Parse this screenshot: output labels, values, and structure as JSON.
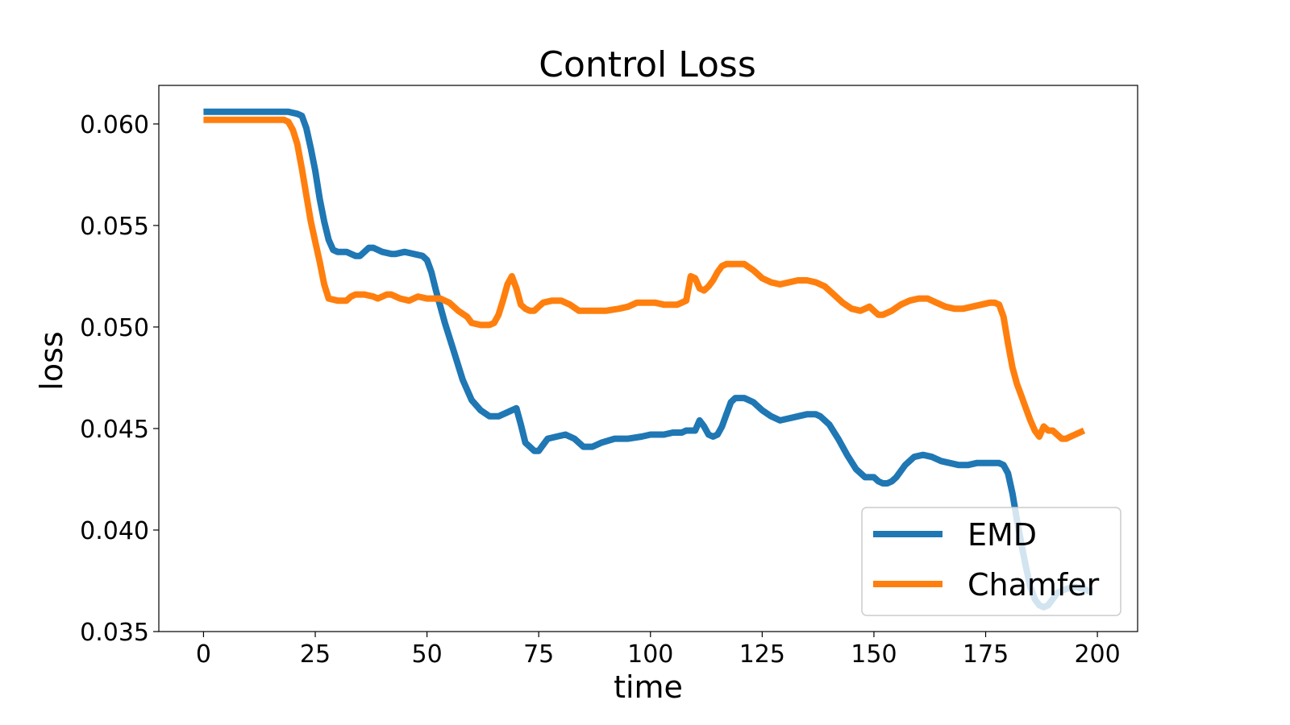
{
  "chart_data": {
    "type": "line",
    "title": "Control Loss",
    "xlabel": "time",
    "ylabel": "loss",
    "xlim": [
      -10,
      209
    ],
    "ylim": [
      0.035,
      0.0619
    ],
    "xticks": [
      0,
      25,
      50,
      75,
      100,
      125,
      150,
      175,
      200
    ],
    "xtick_labels": [
      "0",
      "25",
      "50",
      "75",
      "100",
      "125",
      "150",
      "175",
      "200"
    ],
    "yticks": [
      0.035,
      0.04,
      0.045,
      0.05,
      0.055,
      0.06
    ],
    "ytick_labels": [
      "0.035",
      "0.040",
      "0.045",
      "0.050",
      "0.055",
      "0.060"
    ],
    "grid": false,
    "legend_position": "lower-right",
    "series": [
      {
        "name": "EMD",
        "color": "#1f77b4",
        "points": [
          [
            0,
            0.0606
          ],
          [
            5,
            0.0606
          ],
          [
            10,
            0.0606
          ],
          [
            15,
            0.0606
          ],
          [
            19,
            0.0606
          ],
          [
            21,
            0.0605
          ],
          [
            22,
            0.0604
          ],
          [
            23,
            0.0598
          ],
          [
            24,
            0.0588
          ],
          [
            25,
            0.0577
          ],
          [
            26,
            0.0563
          ],
          [
            27,
            0.0552
          ],
          [
            28,
            0.0543
          ],
          [
            29,
            0.0538
          ],
          [
            30,
            0.0537
          ],
          [
            32,
            0.0537
          ],
          [
            34,
            0.0535
          ],
          [
            35,
            0.0535
          ],
          [
            37,
            0.0539
          ],
          [
            38,
            0.0539
          ],
          [
            40,
            0.0537
          ],
          [
            42,
            0.0536
          ],
          [
            43,
            0.0536
          ],
          [
            45,
            0.0537
          ],
          [
            47,
            0.0536
          ],
          [
            49,
            0.0535
          ],
          [
            50,
            0.0533
          ],
          [
            51,
            0.0527
          ],
          [
            52,
            0.0518
          ],
          [
            54,
            0.0502
          ],
          [
            56,
            0.0488
          ],
          [
            58,
            0.0474
          ],
          [
            60,
            0.0464
          ],
          [
            62,
            0.0459
          ],
          [
            64,
            0.0456
          ],
          [
            66,
            0.0456
          ],
          [
            68,
            0.0458
          ],
          [
            69,
            0.0459
          ],
          [
            70,
            0.046
          ],
          [
            71,
            0.0452
          ],
          [
            72,
            0.0443
          ],
          [
            73,
            0.0441
          ],
          [
            74,
            0.0439
          ],
          [
            75,
            0.0439
          ],
          [
            76,
            0.0442
          ],
          [
            77,
            0.0445
          ],
          [
            79,
            0.0446
          ],
          [
            81,
            0.0447
          ],
          [
            83,
            0.0445
          ],
          [
            85,
            0.0441
          ],
          [
            87,
            0.0441
          ],
          [
            89,
            0.0443
          ],
          [
            92,
            0.0445
          ],
          [
            95,
            0.0445
          ],
          [
            98,
            0.0446
          ],
          [
            100,
            0.0447
          ],
          [
            103,
            0.0447
          ],
          [
            105,
            0.0448
          ],
          [
            107,
            0.0448
          ],
          [
            108,
            0.0449
          ],
          [
            110,
            0.0449
          ],
          [
            111,
            0.0454
          ],
          [
            112,
            0.0451
          ],
          [
            113,
            0.0447
          ],
          [
            114,
            0.0446
          ],
          [
            115,
            0.0447
          ],
          [
            116,
            0.0451
          ],
          [
            117,
            0.0457
          ],
          [
            118,
            0.0463
          ],
          [
            119,
            0.0465
          ],
          [
            121,
            0.0465
          ],
          [
            123,
            0.0463
          ],
          [
            125,
            0.0459
          ],
          [
            127,
            0.0456
          ],
          [
            129,
            0.0454
          ],
          [
            131,
            0.0455
          ],
          [
            133,
            0.0456
          ],
          [
            135,
            0.0457
          ],
          [
            137,
            0.0457
          ],
          [
            138,
            0.0456
          ],
          [
            140,
            0.0452
          ],
          [
            142,
            0.0445
          ],
          [
            144,
            0.0437
          ],
          [
            146,
            0.043
          ],
          [
            148,
            0.0426
          ],
          [
            150,
            0.0426
          ],
          [
            151,
            0.0424
          ],
          [
            152,
            0.0423
          ],
          [
            153,
            0.0423
          ],
          [
            154,
            0.0424
          ],
          [
            155,
            0.0426
          ],
          [
            157,
            0.0432
          ],
          [
            159,
            0.0436
          ],
          [
            161,
            0.0437
          ],
          [
            163,
            0.0436
          ],
          [
            165,
            0.0434
          ],
          [
            167,
            0.0433
          ],
          [
            169,
            0.0432
          ],
          [
            171,
            0.0432
          ],
          [
            173,
            0.0433
          ],
          [
            175,
            0.0433
          ],
          [
            177,
            0.0433
          ],
          [
            178,
            0.0433
          ],
          [
            179,
            0.0432
          ],
          [
            180,
            0.0428
          ],
          [
            181,
            0.0418
          ],
          [
            182,
            0.0405
          ],
          [
            183,
            0.0393
          ],
          [
            184,
            0.0382
          ],
          [
            185,
            0.0372
          ],
          [
            186,
            0.0366
          ],
          [
            187,
            0.0363
          ],
          [
            188,
            0.0362
          ],
          [
            189,
            0.0363
          ],
          [
            190,
            0.0366
          ],
          [
            191,
            0.0369
          ],
          [
            192,
            0.037
          ],
          [
            193,
            0.0371
          ],
          [
            195,
            0.0372
          ],
          [
            197,
            0.0371
          ],
          [
            198,
            0.037
          ],
          [
            199,
            0.037
          ]
        ]
      },
      {
        "name": "Chamfer",
        "color": "#ff7f0e",
        "points": [
          [
            0,
            0.0602
          ],
          [
            5,
            0.0602
          ],
          [
            10,
            0.0602
          ],
          [
            15,
            0.0602
          ],
          [
            18,
            0.0602
          ],
          [
            19,
            0.0601
          ],
          [
            20,
            0.0597
          ],
          [
            21,
            0.059
          ],
          [
            22,
            0.0578
          ],
          [
            23,
            0.0565
          ],
          [
            24,
            0.0552
          ],
          [
            25,
            0.0542
          ],
          [
            26,
            0.0532
          ],
          [
            27,
            0.0521
          ],
          [
            28,
            0.0514
          ],
          [
            30,
            0.0513
          ],
          [
            32,
            0.0513
          ],
          [
            33,
            0.0515
          ],
          [
            34,
            0.0516
          ],
          [
            36,
            0.0516
          ],
          [
            38,
            0.0515
          ],
          [
            39,
            0.0514
          ],
          [
            40,
            0.0515
          ],
          [
            41,
            0.0516
          ],
          [
            42,
            0.0516
          ],
          [
            44,
            0.0514
          ],
          [
            46,
            0.0513
          ],
          [
            47,
            0.0514
          ],
          [
            48,
            0.0515
          ],
          [
            50,
            0.0514
          ],
          [
            52,
            0.0514
          ],
          [
            53,
            0.0514
          ],
          [
            55,
            0.0512
          ],
          [
            57,
            0.0508
          ],
          [
            59,
            0.0505
          ],
          [
            60,
            0.0502
          ],
          [
            62,
            0.0501
          ],
          [
            64,
            0.0501
          ],
          [
            65,
            0.0502
          ],
          [
            66,
            0.0506
          ],
          [
            67,
            0.0513
          ],
          [
            68,
            0.0521
          ],
          [
            69,
            0.0525
          ],
          [
            70,
            0.0519
          ],
          [
            71,
            0.0511
          ],
          [
            72,
            0.0509
          ],
          [
            73,
            0.0508
          ],
          [
            74,
            0.0508
          ],
          [
            75,
            0.051
          ],
          [
            76,
            0.0512
          ],
          [
            78,
            0.0513
          ],
          [
            80,
            0.0513
          ],
          [
            82,
            0.0511
          ],
          [
            84,
            0.0508
          ],
          [
            86,
            0.0508
          ],
          [
            88,
            0.0508
          ],
          [
            90,
            0.0508
          ],
          [
            93,
            0.0509
          ],
          [
            95,
            0.051
          ],
          [
            97,
            0.0512
          ],
          [
            99,
            0.0512
          ],
          [
            101,
            0.0512
          ],
          [
            103,
            0.0511
          ],
          [
            105,
            0.0511
          ],
          [
            106,
            0.0511
          ],
          [
            107,
            0.0512
          ],
          [
            108,
            0.0513
          ],
          [
            109,
            0.0525
          ],
          [
            110,
            0.0524
          ],
          [
            111,
            0.0519
          ],
          [
            112,
            0.0518
          ],
          [
            113,
            0.052
          ],
          [
            114,
            0.0523
          ],
          [
            115,
            0.0527
          ],
          [
            116,
            0.053
          ],
          [
            117,
            0.0531
          ],
          [
            119,
            0.0531
          ],
          [
            121,
            0.0531
          ],
          [
            123,
            0.0528
          ],
          [
            125,
            0.0524
          ],
          [
            127,
            0.0522
          ],
          [
            129,
            0.0521
          ],
          [
            131,
            0.0522
          ],
          [
            133,
            0.0523
          ],
          [
            135,
            0.0523
          ],
          [
            137,
            0.0522
          ],
          [
            139,
            0.052
          ],
          [
            141,
            0.0516
          ],
          [
            143,
            0.0512
          ],
          [
            145,
            0.0509
          ],
          [
            147,
            0.0508
          ],
          [
            148,
            0.0509
          ],
          [
            149,
            0.051
          ],
          [
            150,
            0.0508
          ],
          [
            151,
            0.0506
          ],
          [
            152,
            0.0506
          ],
          [
            154,
            0.0508
          ],
          [
            156,
            0.0511
          ],
          [
            158,
            0.0513
          ],
          [
            160,
            0.0514
          ],
          [
            162,
            0.0514
          ],
          [
            164,
            0.0512
          ],
          [
            166,
            0.051
          ],
          [
            168,
            0.0509
          ],
          [
            170,
            0.0509
          ],
          [
            172,
            0.051
          ],
          [
            174,
            0.0511
          ],
          [
            176,
            0.0512
          ],
          [
            177,
            0.0512
          ],
          [
            178,
            0.0511
          ],
          [
            179,
            0.0505
          ],
          [
            180,
            0.0492
          ],
          [
            181,
            0.048
          ],
          [
            182,
            0.0472
          ],
          [
            183,
            0.0466
          ],
          [
            184,
            0.046
          ],
          [
            185,
            0.0454
          ],
          [
            186,
            0.0449
          ],
          [
            187,
            0.0446
          ],
          [
            188,
            0.0451
          ],
          [
            189,
            0.0449
          ],
          [
            190,
            0.0449
          ],
          [
            191,
            0.0447
          ],
          [
            192,
            0.0445
          ],
          [
            193,
            0.0445
          ],
          [
            194,
            0.0446
          ],
          [
            195,
            0.0447
          ],
          [
            196,
            0.0448
          ],
          [
            197,
            0.0449
          ]
        ]
      }
    ]
  }
}
